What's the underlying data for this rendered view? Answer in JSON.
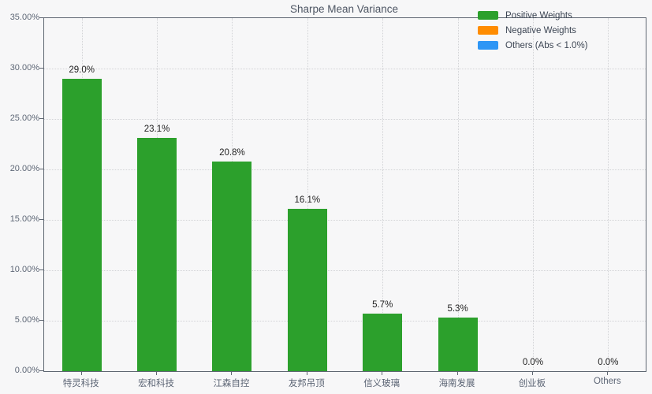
{
  "chart_data": {
    "type": "bar",
    "title": "Sharpe Mean Variance",
    "categories": [
      "特灵科技",
      "宏和科技",
      "江森自控",
      "友邦吊顶",
      "信义玻璃",
      "海南发展",
      "创业板",
      "Others"
    ],
    "values": [
      29.0,
      23.1,
      20.8,
      16.1,
      5.7,
      5.3,
      0.0,
      0.0
    ],
    "value_labels": [
      "29.0%",
      "23.1%",
      "20.8%",
      "16.1%",
      "5.7%",
      "5.3%",
      "0.0%",
      "0.0%"
    ],
    "bar_color": "#2ca02c",
    "ylim": [
      0,
      35
    ],
    "ytick_values": [
      0,
      5,
      10,
      15,
      20,
      25,
      30,
      35
    ],
    "yticks": [
      "0.00%",
      "5.00%",
      "10.00%",
      "15.00%",
      "20.00%",
      "25.00%",
      "30.00%",
      "35.00%"
    ],
    "grid": "dotted, horizontal and vertical",
    "legend_position": "upper right",
    "legend": [
      {
        "label": "Positive Weights",
        "color": "#2ca02c"
      },
      {
        "label": "Negative Weights",
        "color": "#ff8c00"
      },
      {
        "label": "Others (Abs < 1.0%)",
        "color": "#2e96f5"
      }
    ],
    "colors": {
      "background": "#f7f7f8",
      "spine": "#5f6772",
      "grid": "#d2d3d6",
      "title_text": "#4d5563",
      "tick_text": "#5f6877",
      "value_text": "#1f1f1f"
    }
  }
}
